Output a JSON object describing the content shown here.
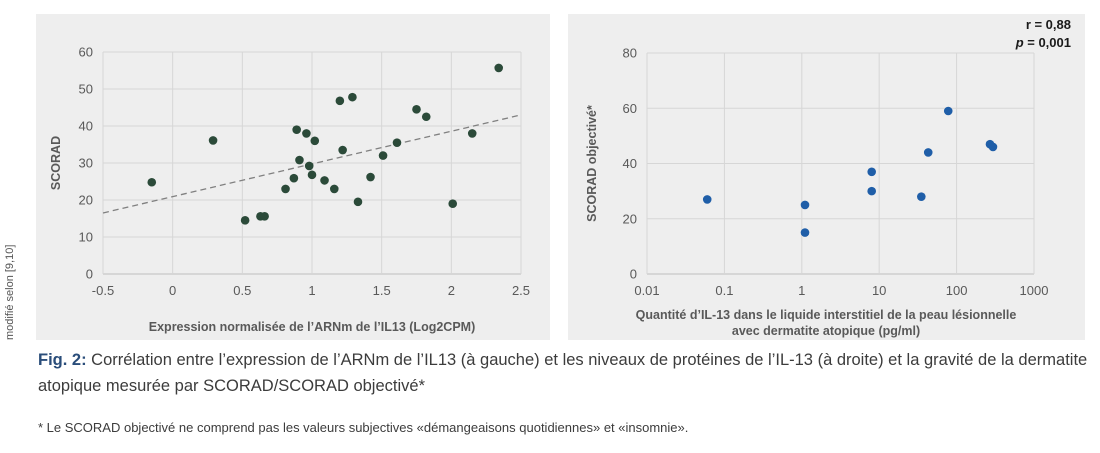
{
  "side_note": "modifié selon [9,10]",
  "caption": {
    "lead": "Fig. 2:",
    "text": " Corrélation entre l’expression de l’ARNm de l’IL13 (à gauche) et les niveaux de protéines de l’IL-13 (à droite) et la gravité de la dermatite atopique mesurée par SCORAD/SCORAD objectivé*"
  },
  "footnote": "* Le SCORAD objectivé ne comprend pas les valeurs subjectives «démangeaisons quotidiennes» et «insomnie».",
  "chart_data": [
    {
      "type": "scatter",
      "title": "",
      "xlabel": "Expression normalisée de l’ARNm de l’IL13 (Log2CPM)",
      "ylabel": "SCORAD",
      "xlim": [
        -0.5,
        2.5
      ],
      "ylim": [
        0,
        60
      ],
      "x_ticks": [
        -0.5,
        0,
        0.5,
        1,
        1.5,
        2,
        2.5
      ],
      "x_tick_labels": [
        "-0.5",
        "0",
        "0.5",
        "1",
        "1.5",
        "2",
        "2.5"
      ],
      "y_ticks": [
        0,
        10,
        20,
        30,
        40,
        50,
        60
      ],
      "y_tick_labels": [
        "0",
        "10",
        "20",
        "30",
        "40",
        "50",
        "60"
      ],
      "grid": true,
      "marker_color": "#2b4a39",
      "trendline": {
        "style": "dashed",
        "color": "#808080",
        "x": [
          -0.5,
          2.5
        ],
        "y": [
          16.5,
          43.0
        ]
      },
      "points": [
        {
          "x": -0.15,
          "y": 24.8
        },
        {
          "x": 0.29,
          "y": 36.1
        },
        {
          "x": 0.52,
          "y": 14.5
        },
        {
          "x": 0.63,
          "y": 15.6
        },
        {
          "x": 0.66,
          "y": 15.6
        },
        {
          "x": 0.81,
          "y": 23.0
        },
        {
          "x": 0.87,
          "y": 25.9
        },
        {
          "x": 0.89,
          "y": 39.0
        },
        {
          "x": 0.91,
          "y": 30.8
        },
        {
          "x": 0.96,
          "y": 38.0
        },
        {
          "x": 0.98,
          "y": 29.2
        },
        {
          "x": 1.0,
          "y": 26.8
        },
        {
          "x": 1.02,
          "y": 36.0
        },
        {
          "x": 1.09,
          "y": 25.3
        },
        {
          "x": 1.16,
          "y": 23.0
        },
        {
          "x": 1.2,
          "y": 46.8
        },
        {
          "x": 1.22,
          "y": 33.5
        },
        {
          "x": 1.29,
          "y": 47.8
        },
        {
          "x": 1.33,
          "y": 19.5
        },
        {
          "x": 1.42,
          "y": 26.2
        },
        {
          "x": 1.51,
          "y": 32.0
        },
        {
          "x": 1.61,
          "y": 35.5
        },
        {
          "x": 1.75,
          "y": 44.5
        },
        {
          "x": 1.82,
          "y": 42.5
        },
        {
          "x": 2.01,
          "y": 19.0
        },
        {
          "x": 2.15,
          "y": 38.0
        },
        {
          "x": 2.34,
          "y": 55.7
        }
      ]
    },
    {
      "type": "scatter",
      "title": "",
      "xlabel": [
        "Quantité d’IL-13 dans le liquide interstitiel de la peau lésionnelle",
        "avec dermatite atopique (pg/ml)"
      ],
      "ylabel": "SCORAD objectivé*",
      "x_scale": "log",
      "xlim": [
        0.01,
        1000
      ],
      "ylim": [
        0,
        80
      ],
      "x_ticks": [
        0.01,
        0.1,
        1,
        10,
        100,
        1000
      ],
      "x_tick_labels": [
        "0.01",
        "0.1",
        "1",
        "10",
        "100",
        "1000"
      ],
      "y_ticks": [
        0,
        20,
        40,
        60,
        80
      ],
      "y_tick_labels": [
        "0",
        "20",
        "40",
        "60",
        "80"
      ],
      "grid": true,
      "marker_color": "#1f5ea8",
      "annotation": {
        "r_label": "r = 0,88",
        "p_symbol": "p",
        "p_value": " = 0,001"
      },
      "points": [
        {
          "x": 0.06,
          "y": 27
        },
        {
          "x": 1.1,
          "y": 25
        },
        {
          "x": 1.1,
          "y": 15
        },
        {
          "x": 8,
          "y": 37
        },
        {
          "x": 8,
          "y": 30
        },
        {
          "x": 35,
          "y": 28
        },
        {
          "x": 43,
          "y": 44
        },
        {
          "x": 78,
          "y": 59
        },
        {
          "x": 270,
          "y": 47
        },
        {
          "x": 295,
          "y": 46
        }
      ]
    }
  ]
}
